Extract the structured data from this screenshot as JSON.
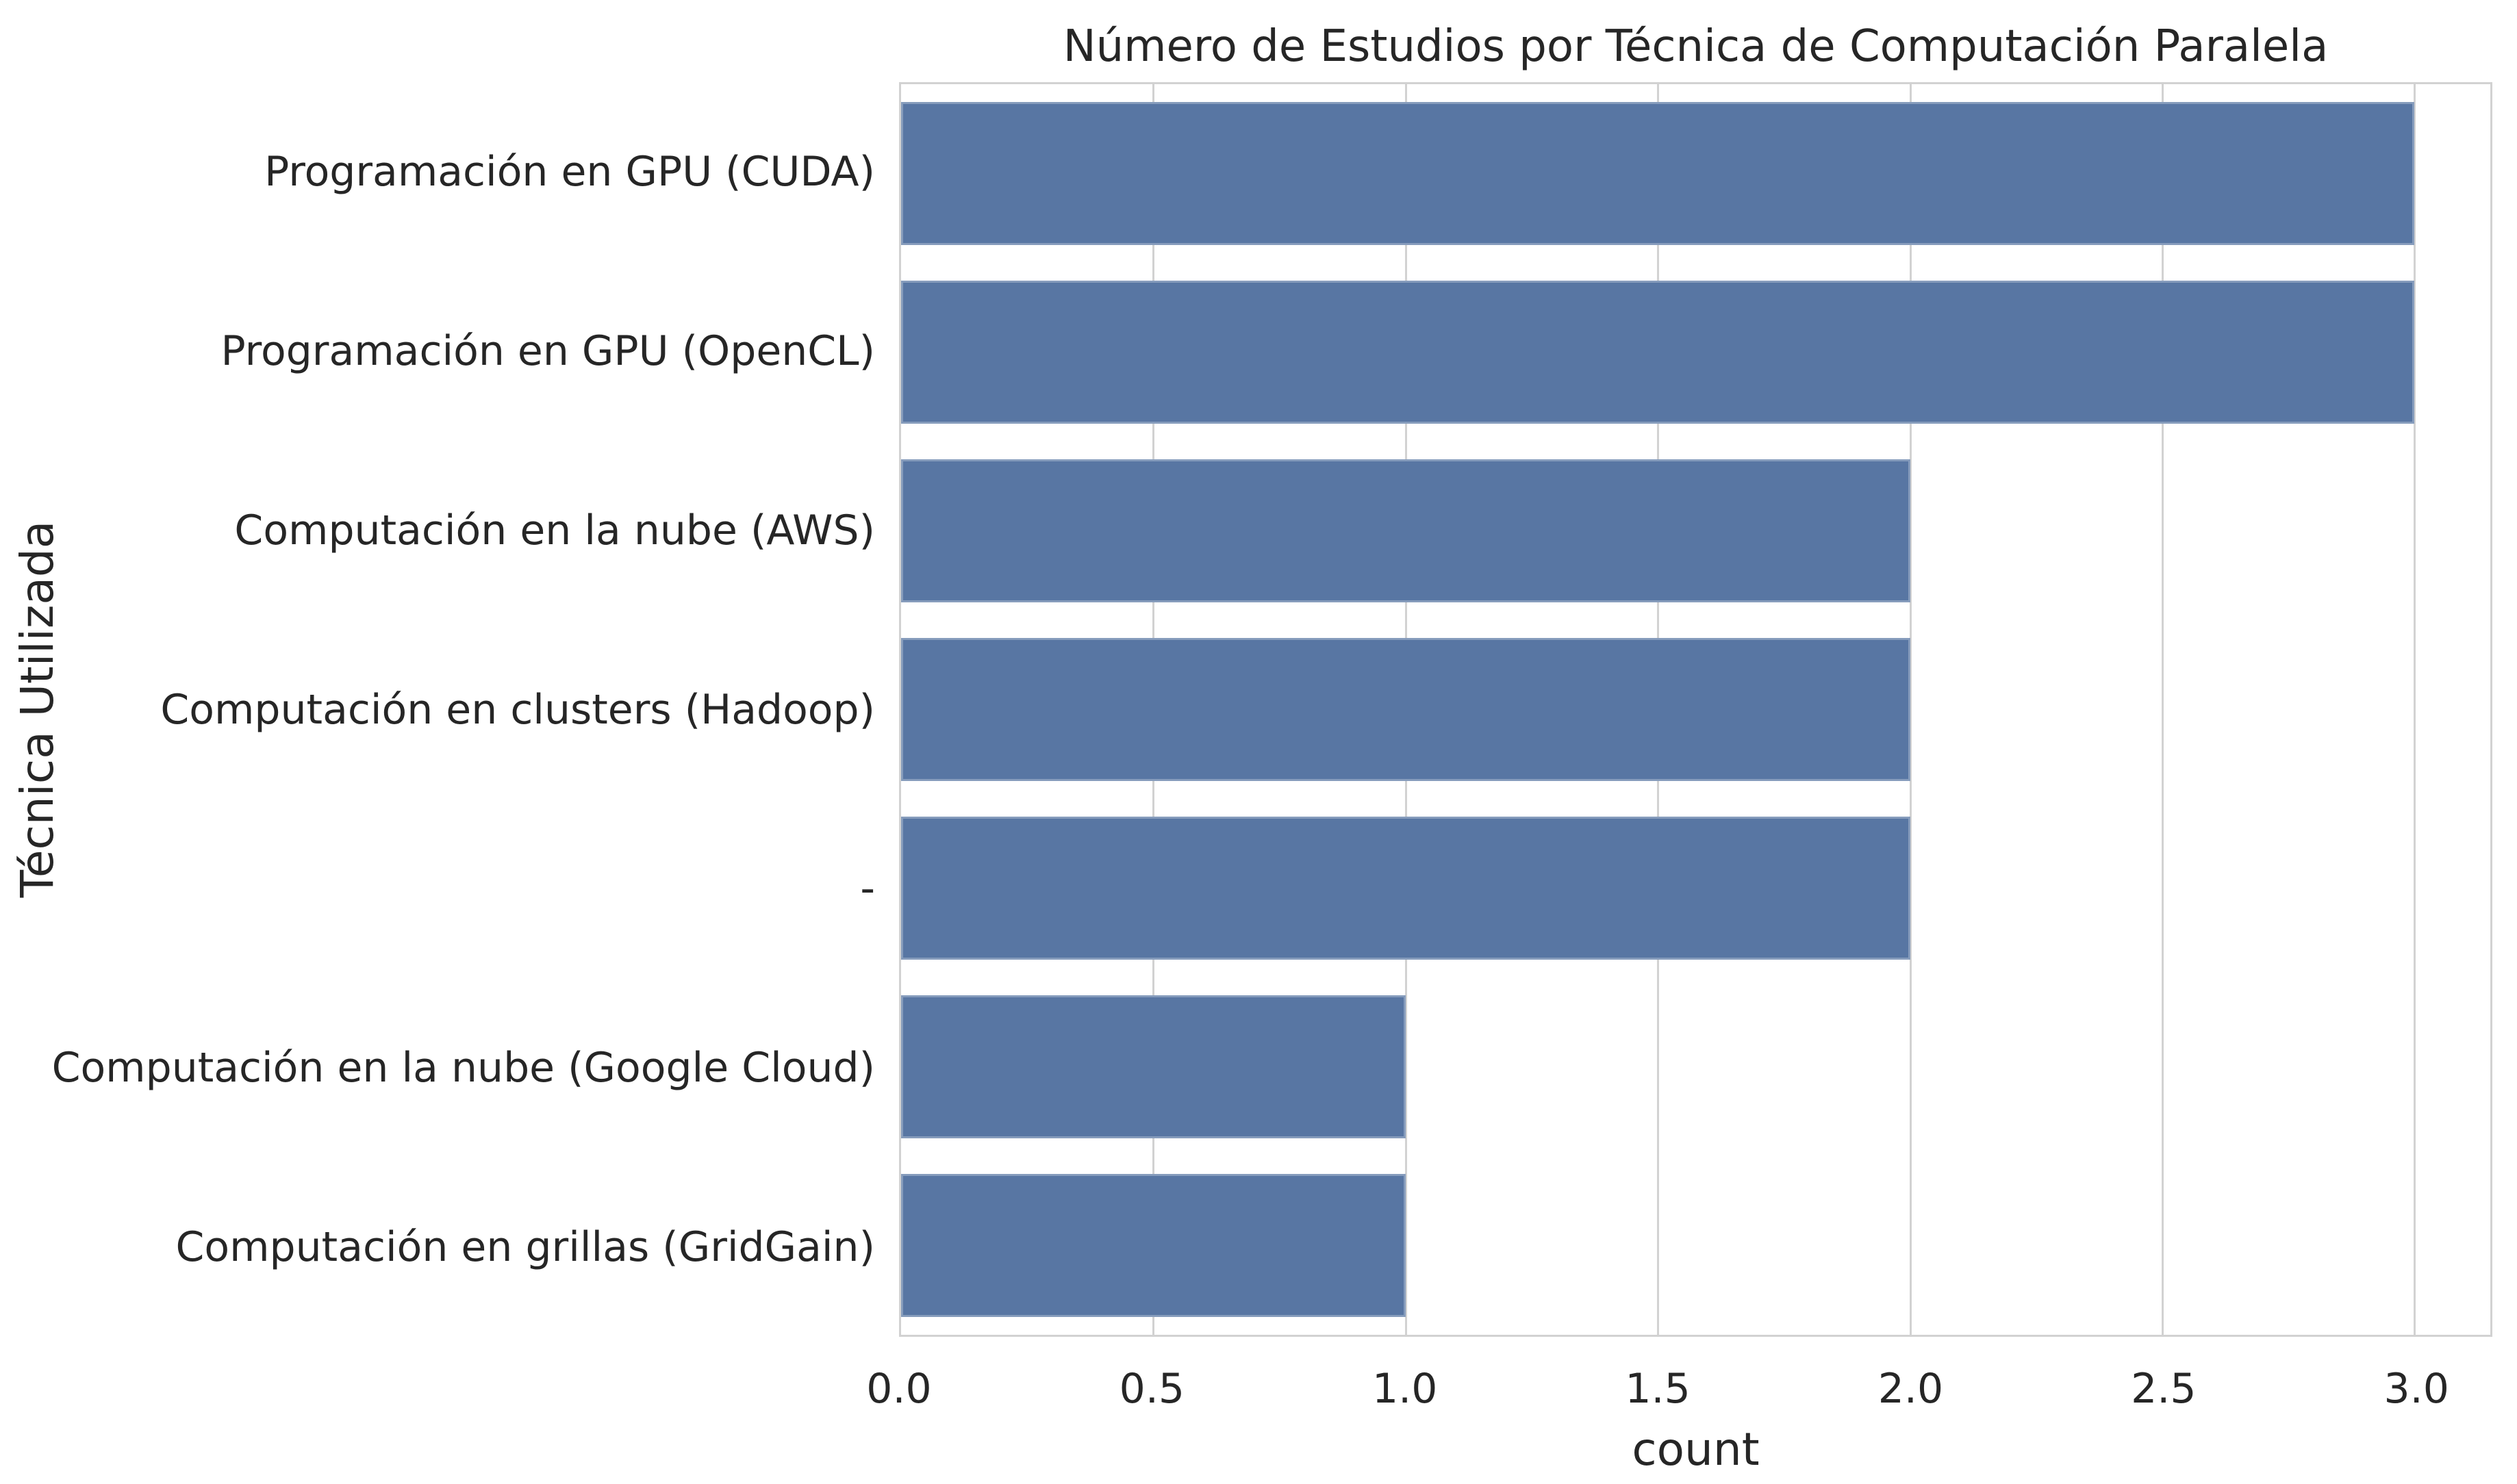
{
  "chart_data": {
    "type": "bar",
    "orientation": "horizontal",
    "title": "Número de Estudios por Técnica de Computación Paralela",
    "xlabel": "count",
    "ylabel": "Técnica Utilizada",
    "categories": [
      "Programación en GPU (CUDA)",
      "Programación en GPU (OpenCL)",
      "Computación en la nube (AWS)",
      "Computación en clusters (Hadoop)",
      "-",
      "Computación en la nube (Google Cloud)",
      "Computación en grillas (GridGain)"
    ],
    "values": [
      3,
      3,
      2,
      2,
      2,
      1,
      1
    ],
    "xlim": [
      0,
      3.15
    ],
    "xticks": [
      0.0,
      0.5,
      1.0,
      1.5,
      2.0,
      2.5,
      3.0
    ],
    "xtick_labels": [
      "0.0",
      "0.5",
      "1.0",
      "1.5",
      "2.0",
      "2.5",
      "3.0"
    ],
    "grid": true,
    "legend": "none",
    "style": "whitegrid",
    "bar_color": "#5876a3",
    "grid_color": "#d2d2d2",
    "text_color": "#262626",
    "bar_fraction": 0.8
  }
}
